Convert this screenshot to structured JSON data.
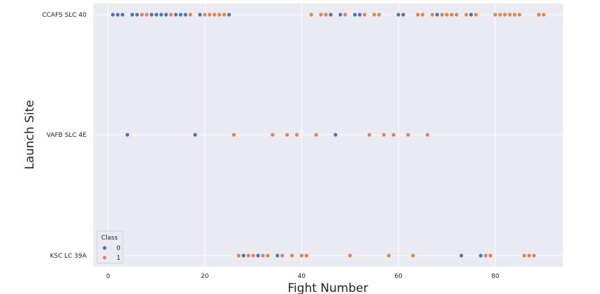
{
  "chart_data": {
    "type": "scatter",
    "title": "",
    "xlabel": "Fight Number",
    "ylabel": "Launch Site",
    "xlim": [
      -3,
      94
    ],
    "x_ticks": [
      0,
      20,
      40,
      60,
      80
    ],
    "categories": [
      "CCAFS SLC 40",
      "VAFB SLC 4E",
      "KSC LC 39A"
    ],
    "grid": true,
    "legend": {
      "title": "Class",
      "placement": "bottom-left",
      "entries": [
        {
          "name": "0",
          "color": "#4c72b0"
        },
        {
          "name": "1",
          "color": "#dd8452"
        }
      ]
    },
    "series": [
      {
        "name": "0",
        "color": "#4c72b0",
        "points": [
          {
            "x": 1,
            "y": "CCAFS SLC 40"
          },
          {
            "x": 2,
            "y": "CCAFS SLC 40"
          },
          {
            "x": 3,
            "y": "CCAFS SLC 40"
          },
          {
            "x": 5,
            "y": "CCAFS SLC 40"
          },
          {
            "x": 6,
            "y": "CCAFS SLC 40"
          },
          {
            "x": 9,
            "y": "CCAFS SLC 40"
          },
          {
            "x": 10,
            "y": "CCAFS SLC 40"
          },
          {
            "x": 11,
            "y": "CCAFS SLC 40"
          },
          {
            "x": 12,
            "y": "CCAFS SLC 40"
          },
          {
            "x": 14,
            "y": "CCAFS SLC 40"
          },
          {
            "x": 15,
            "y": "CCAFS SLC 40"
          },
          {
            "x": 16,
            "y": "CCAFS SLC 40"
          },
          {
            "x": 19,
            "y": "CCAFS SLC 40"
          },
          {
            "x": 25,
            "y": "CCAFS SLC 40"
          },
          {
            "x": 46,
            "y": "CCAFS SLC 40"
          },
          {
            "x": 48,
            "y": "CCAFS SLC 40"
          },
          {
            "x": 51,
            "y": "CCAFS SLC 40"
          },
          {
            "x": 52,
            "y": "CCAFS SLC 40"
          },
          {
            "x": 60,
            "y": "CCAFS SLC 40"
          },
          {
            "x": 61,
            "y": "CCAFS SLC 40"
          },
          {
            "x": 68,
            "y": "CCAFS SLC 40"
          },
          {
            "x": 75,
            "y": "CCAFS SLC 40"
          },
          {
            "x": 4,
            "y": "VAFB SLC 4E"
          },
          {
            "x": 18,
            "y": "VAFB SLC 4E"
          },
          {
            "x": 47,
            "y": "VAFB SLC 4E"
          },
          {
            "x": 28,
            "y": "KSC LC 39A"
          },
          {
            "x": 31,
            "y": "KSC LC 39A"
          },
          {
            "x": 35,
            "y": "KSC LC 39A"
          },
          {
            "x": 73,
            "y": "KSC LC 39A"
          },
          {
            "x": 77,
            "y": "KSC LC 39A"
          }
        ]
      },
      {
        "name": "1",
        "color": "#dd8452",
        "points": [
          {
            "x": 7,
            "y": "CCAFS SLC 40"
          },
          {
            "x": 8,
            "y": "CCAFS SLC 40"
          },
          {
            "x": 13,
            "y": "CCAFS SLC 40"
          },
          {
            "x": 17,
            "y": "CCAFS SLC 40"
          },
          {
            "x": 20,
            "y": "CCAFS SLC 40"
          },
          {
            "x": 21,
            "y": "CCAFS SLC 40"
          },
          {
            "x": 22,
            "y": "CCAFS SLC 40"
          },
          {
            "x": 23,
            "y": "CCAFS SLC 40"
          },
          {
            "x": 24,
            "y": "CCAFS SLC 40"
          },
          {
            "x": 42,
            "y": "CCAFS SLC 40"
          },
          {
            "x": 44,
            "y": "CCAFS SLC 40"
          },
          {
            "x": 45,
            "y": "CCAFS SLC 40"
          },
          {
            "x": 49,
            "y": "CCAFS SLC 40"
          },
          {
            "x": 53,
            "y": "CCAFS SLC 40"
          },
          {
            "x": 55,
            "y": "CCAFS SLC 40"
          },
          {
            "x": 56,
            "y": "CCAFS SLC 40"
          },
          {
            "x": 64,
            "y": "CCAFS SLC 40"
          },
          {
            "x": 65,
            "y": "CCAFS SLC 40"
          },
          {
            "x": 67,
            "y": "CCAFS SLC 40"
          },
          {
            "x": 69,
            "y": "CCAFS SLC 40"
          },
          {
            "x": 70,
            "y": "CCAFS SLC 40"
          },
          {
            "x": 71,
            "y": "CCAFS SLC 40"
          },
          {
            "x": 72,
            "y": "CCAFS SLC 40"
          },
          {
            "x": 74,
            "y": "CCAFS SLC 40"
          },
          {
            "x": 76,
            "y": "CCAFS SLC 40"
          },
          {
            "x": 80,
            "y": "CCAFS SLC 40"
          },
          {
            "x": 81,
            "y": "CCAFS SLC 40"
          },
          {
            "x": 82,
            "y": "CCAFS SLC 40"
          },
          {
            "x": 83,
            "y": "CCAFS SLC 40"
          },
          {
            "x": 84,
            "y": "CCAFS SLC 40"
          },
          {
            "x": 85,
            "y": "CCAFS SLC 40"
          },
          {
            "x": 89,
            "y": "CCAFS SLC 40"
          },
          {
            "x": 90,
            "y": "CCAFS SLC 40"
          },
          {
            "x": 26,
            "y": "VAFB SLC 4E"
          },
          {
            "x": 34,
            "y": "VAFB SLC 4E"
          },
          {
            "x": 37,
            "y": "VAFB SLC 4E"
          },
          {
            "x": 39,
            "y": "VAFB SLC 4E"
          },
          {
            "x": 43,
            "y": "VAFB SLC 4E"
          },
          {
            "x": 54,
            "y": "VAFB SLC 4E"
          },
          {
            "x": 57,
            "y": "VAFB SLC 4E"
          },
          {
            "x": 59,
            "y": "VAFB SLC 4E"
          },
          {
            "x": 62,
            "y": "VAFB SLC 4E"
          },
          {
            "x": 66,
            "y": "VAFB SLC 4E"
          },
          {
            "x": 27,
            "y": "KSC LC 39A"
          },
          {
            "x": 29,
            "y": "KSC LC 39A"
          },
          {
            "x": 30,
            "y": "KSC LC 39A"
          },
          {
            "x": 32,
            "y": "KSC LC 39A"
          },
          {
            "x": 33,
            "y": "KSC LC 39A"
          },
          {
            "x": 36,
            "y": "KSC LC 39A"
          },
          {
            "x": 38,
            "y": "KSC LC 39A"
          },
          {
            "x": 40,
            "y": "KSC LC 39A"
          },
          {
            "x": 41,
            "y": "KSC LC 39A"
          },
          {
            "x": 50,
            "y": "KSC LC 39A"
          },
          {
            "x": 58,
            "y": "KSC LC 39A"
          },
          {
            "x": 63,
            "y": "KSC LC 39A"
          },
          {
            "x": 78,
            "y": "KSC LC 39A"
          },
          {
            "x": 79,
            "y": "KSC LC 39A"
          },
          {
            "x": 86,
            "y": "KSC LC 39A"
          },
          {
            "x": 87,
            "y": "KSC LC 39A"
          },
          {
            "x": 88,
            "y": "KSC LC 39A"
          }
        ]
      }
    ]
  }
}
